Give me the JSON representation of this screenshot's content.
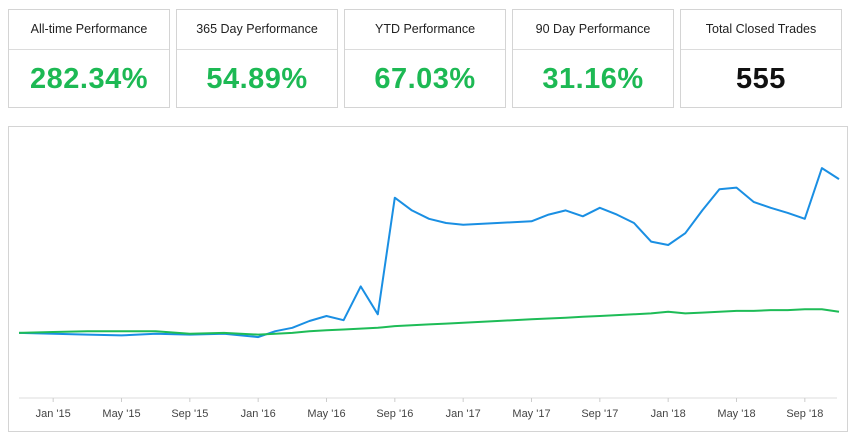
{
  "cards": [
    {
      "title": "All-time Performance",
      "value": "282.34%",
      "color": "#1db954"
    },
    {
      "title": "365 Day Performance",
      "value": "54.89%",
      "color": "#1db954"
    },
    {
      "title": "YTD Performance",
      "value": "67.03%",
      "color": "#1db954"
    },
    {
      "title": "90 Day Performance",
      "value": "31.16%",
      "color": "#1db954"
    },
    {
      "title": "Total Closed Trades",
      "value": "555",
      "color": "#111111"
    }
  ],
  "chart_data": {
    "type": "line",
    "title": "",
    "xlabel": "",
    "ylabel": "",
    "x_ticks": [
      "Jan '15",
      "May '15",
      "Sep '15",
      "Jan '16",
      "May '16",
      "Sep '16",
      "Jan '17",
      "May '17",
      "Sep '17",
      "Jan '18",
      "May '18",
      "Sep '18"
    ],
    "x": [
      "2014-11",
      "2015-01",
      "2015-03",
      "2015-05",
      "2015-07",
      "2015-09",
      "2015-11",
      "2016-01",
      "2016-02",
      "2016-03",
      "2016-04",
      "2016-05",
      "2016-06",
      "2016-07",
      "2016-08",
      "2016-09",
      "2016-10",
      "2016-11",
      "2016-12",
      "2017-01",
      "2017-03",
      "2017-05",
      "2017-06",
      "2017-07",
      "2017-08",
      "2017-09",
      "2017-10",
      "2017-11",
      "2017-12",
      "2018-01",
      "2018-02",
      "2018-03",
      "2018-04",
      "2018-05",
      "2018-06",
      "2018-07",
      "2018-08",
      "2018-09",
      "2018-10",
      "2018-11"
    ],
    "series": [
      {
        "color": "#1a8fe3",
        "values": [
          1.0,
          0.99,
          0.98,
          0.97,
          0.99,
          0.98,
          0.99,
          0.95,
          1.02,
          1.06,
          1.14,
          1.2,
          1.15,
          1.55,
          1.22,
          2.6,
          2.45,
          2.35,
          2.3,
          2.28,
          2.3,
          2.32,
          2.4,
          2.45,
          2.38,
          2.48,
          2.4,
          2.3,
          2.08,
          2.04,
          2.18,
          2.45,
          2.7,
          2.72,
          2.55,
          2.48,
          2.42,
          2.35,
          2.95,
          2.82
        ]
      },
      {
        "color": "#1ebc57",
        "values": [
          1.0,
          1.01,
          1.02,
          1.02,
          1.02,
          0.99,
          1.0,
          0.98,
          0.99,
          1.0,
          1.02,
          1.03,
          1.04,
          1.05,
          1.06,
          1.08,
          1.09,
          1.1,
          1.11,
          1.12,
          1.14,
          1.16,
          1.17,
          1.18,
          1.19,
          1.2,
          1.21,
          1.22,
          1.23,
          1.25,
          1.23,
          1.24,
          1.25,
          1.26,
          1.26,
          1.27,
          1.27,
          1.28,
          1.28,
          1.25
        ]
      }
    ]
  }
}
